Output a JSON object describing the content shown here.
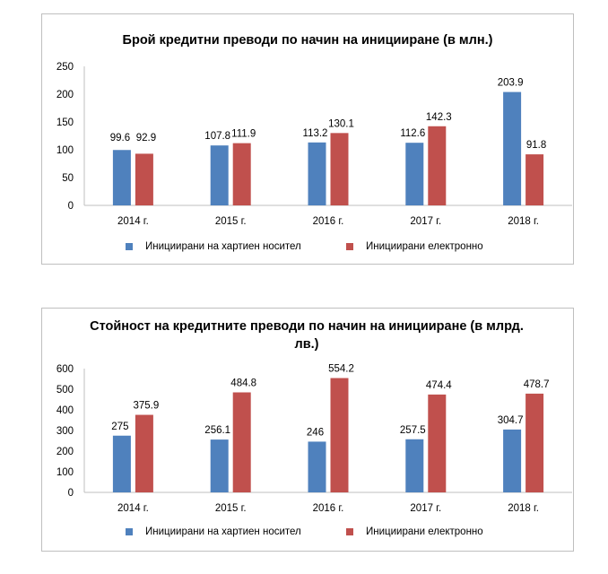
{
  "colors": {
    "paper": "#4F81BD",
    "electronic": "#C0504D",
    "axis": "#bfbfbf"
  },
  "chart_data": [
    {
      "type": "bar",
      "title": "Брой кредитни преводи по начин на иницииране (в млн.)",
      "categories": [
        "2014 г.",
        "2015 г.",
        "2016 г.",
        "2017 г.",
        "2018 г."
      ],
      "ylim": [
        0,
        250
      ],
      "yticks": [
        "0",
        "50",
        "100",
        "150",
        "200",
        "250"
      ],
      "grid": false,
      "legend_position": "bottom",
      "series": [
        {
          "name": "Инициирани на хартиен носител",
          "color": "#4F81BD",
          "values": [
            99.6,
            107.8,
            113.2,
            112.6,
            203.9
          ],
          "labels": [
            "99.6",
            "107.8",
            "113.2",
            "112.6",
            "203.9"
          ]
        },
        {
          "name": "Инициирани електронно",
          "color": "#C0504D",
          "values": [
            92.9,
            111.9,
            130.1,
            142.3,
            91.8
          ],
          "labels": [
            "92.9",
            "111.9",
            "130.1",
            "142.3",
            "91.8"
          ]
        }
      ]
    },
    {
      "type": "bar",
      "title": "Стойност на кредитните преводи по начин на иницииране (в млрд. лв.)",
      "categories": [
        "2014 г.",
        "2015 г.",
        "2016 г.",
        "2017 г.",
        "2018 г."
      ],
      "ylim": [
        0,
        600
      ],
      "yticks": [
        "0",
        "100",
        "200",
        "300",
        "400",
        "500",
        "600"
      ],
      "grid": false,
      "legend_position": "bottom",
      "series": [
        {
          "name": "Инициирани на хартиен носител",
          "color": "#4F81BD",
          "values": [
            275,
            256.1,
            246,
            257.5,
            304.7
          ],
          "labels": [
            "275",
            "256.1",
            "246",
            "257.5",
            "304.7"
          ]
        },
        {
          "name": "Инициирани електронно",
          "color": "#C0504D",
          "values": [
            375.9,
            484.8,
            554.2,
            474.4,
            478.7
          ],
          "labels": [
            "375.9",
            "484.8",
            "554.2",
            "474.4",
            "478.7"
          ]
        }
      ]
    }
  ]
}
